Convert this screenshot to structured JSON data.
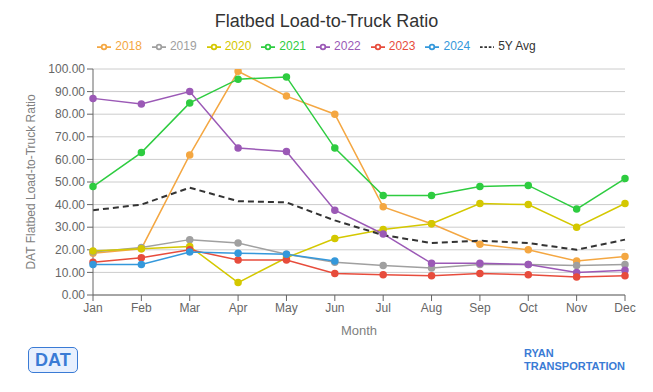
{
  "chart_data": {
    "type": "line",
    "title": "Flatbed Load-to-Truck Ratio",
    "x_label": "Month",
    "y_label": "DAT Flatbed Load-to-Truck Ratio",
    "categories": [
      "Jan",
      "Feb",
      "Mar",
      "Apr",
      "May",
      "Jun",
      "Jul",
      "Aug",
      "Sep",
      "Oct",
      "Nov",
      "Dec"
    ],
    "ylim": [
      0,
      100
    ],
    "yticks": [
      {
        "value": 0,
        "label": "0.00"
      },
      {
        "value": 10,
        "label": "10.00"
      },
      {
        "value": 20,
        "label": "20.00"
      },
      {
        "value": 30,
        "label": "30.00"
      },
      {
        "value": 40,
        "label": "40.00"
      },
      {
        "value": 50,
        "label": "50.00"
      },
      {
        "value": 60,
        "label": "60.00"
      },
      {
        "value": 70,
        "label": "70.00"
      },
      {
        "value": 80,
        "label": "80.00"
      },
      {
        "value": 90,
        "label": "90.00"
      },
      {
        "value": 100,
        "label": "100.00"
      }
    ],
    "grid": "y",
    "legend": "top",
    "series": [
      {
        "name": "2018",
        "color": "#F4A742",
        "marker": "circle",
        "line_style": "solid",
        "values": [
          18.5,
          20.5,
          62.0,
          99.0,
          88.0,
          80.0,
          39.0,
          31.5,
          22.5,
          20.0,
          15.0,
          17.0
        ]
      },
      {
        "name": "2019",
        "color": "#A0A0A0",
        "marker": "circle",
        "line_style": "solid",
        "values": [
          19.0,
          21.0,
          24.5,
          23.0,
          18.0,
          14.5,
          13.0,
          12.0,
          13.5,
          13.5,
          13.0,
          13.5
        ]
      },
      {
        "name": "2020",
        "color": "#D4C800",
        "marker": "circle",
        "line_style": "solid",
        "values": [
          19.5,
          20.5,
          21.5,
          5.5,
          16.5,
          25.0,
          29.0,
          31.5,
          40.5,
          40.0,
          30.0,
          40.5
        ]
      },
      {
        "name": "2021",
        "color": "#2ECC40",
        "marker": "circle",
        "line_style": "solid",
        "values": [
          48.0,
          63.0,
          85.0,
          95.5,
          96.5,
          65.0,
          44.0,
          44.0,
          48.0,
          48.5,
          38.0,
          51.5
        ]
      },
      {
        "name": "2022",
        "color": "#9B59B6",
        "marker": "circle",
        "line_style": "solid",
        "values": [
          87.0,
          84.5,
          90.0,
          65.0,
          63.5,
          37.5,
          27.0,
          14.0,
          14.0,
          13.5,
          10.0,
          11.0
        ]
      },
      {
        "name": "2023",
        "color": "#E74C3C",
        "marker": "circle",
        "line_style": "solid",
        "values": [
          14.5,
          16.5,
          20.0,
          15.5,
          15.5,
          9.5,
          9.0,
          8.5,
          9.5,
          9.0,
          8.0,
          8.5
        ]
      },
      {
        "name": "2024",
        "color": "#3498DB",
        "marker": "circle",
        "line_style": "solid",
        "values": [
          13.5,
          13.5,
          19.0,
          18.5,
          18.0,
          15.0,
          null,
          null,
          null,
          null,
          null,
          null
        ]
      },
      {
        "name": "5Y Avg",
        "color": "#333333",
        "marker": "none",
        "line_style": "dashed",
        "values": [
          37.5,
          40.0,
          47.5,
          41.5,
          41.0,
          33.0,
          26.5,
          23.0,
          24.0,
          23.0,
          20.0,
          24.5
        ]
      }
    ],
    "annotations": [
      {
        "text": "DAT",
        "color": "#3A7BD5"
      },
      {
        "text": "RYAN\nTRANSPORTATION",
        "color": "#3A7BD5"
      }
    ]
  }
}
